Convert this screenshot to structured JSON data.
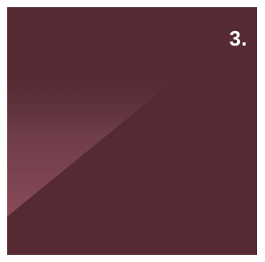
{
  "tile": {
    "number": "3.",
    "colors": {
      "background": "#552a33",
      "gloss_light": "#8a4a5a",
      "text": "#ffffff"
    }
  }
}
